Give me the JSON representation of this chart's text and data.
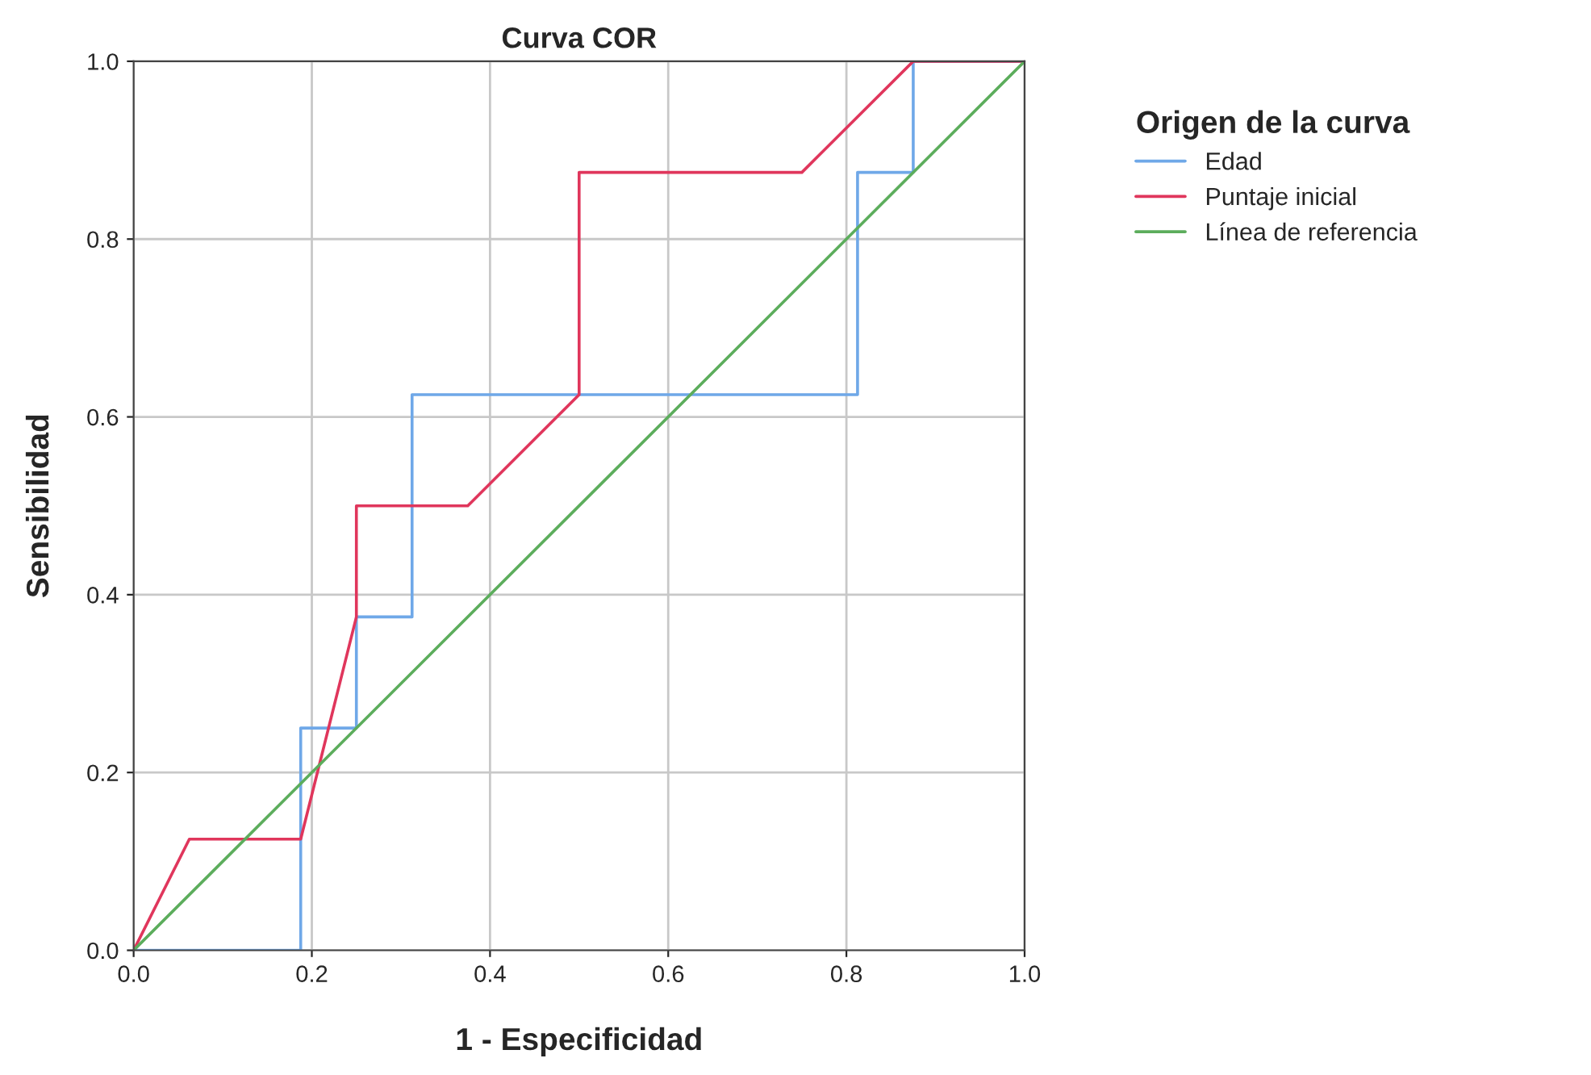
{
  "chart_data": {
    "type": "line",
    "title": "Curva COR",
    "xlabel": "1 - Especificidad",
    "ylabel": "Sensibilidad",
    "legend_title": "Origen de la curva",
    "series": [
      {
        "name": "Edad",
        "color": "#6fa8e8",
        "x": [
          0,
          0.1875,
          0.1875,
          0.25,
          0.25,
          0.3125,
          0.3125,
          0.8125,
          0.8125,
          0.875,
          0.875,
          1
        ],
        "values": [
          0,
          0,
          0.25,
          0.25,
          0.375,
          0.375,
          0.625,
          0.625,
          0.875,
          0.875,
          1,
          1
        ]
      },
      {
        "name": "Puntaje inicial",
        "color": "#e0365c",
        "x": [
          0,
          0.0625,
          0.1875,
          0.25,
          0.25,
          0.375,
          0.5,
          0.5,
          0.75,
          0.875,
          1
        ],
        "values": [
          0,
          0.125,
          0.125,
          0.375,
          0.5,
          0.5,
          0.625,
          0.875,
          0.875,
          1,
          1
        ]
      },
      {
        "name": "Línea de referencia",
        "color": "#5cad5c",
        "x": [
          0,
          1
        ],
        "values": [
          0,
          1
        ]
      }
    ],
    "xlim": [
      0,
      1
    ],
    "ylim": [
      0,
      1
    ],
    "xticks": [
      {
        "value": 0,
        "label": "0.0"
      },
      {
        "value": 0.2,
        "label": "0.2"
      },
      {
        "value": 0.4,
        "label": "0.4"
      },
      {
        "value": 0.6,
        "label": "0.6"
      },
      {
        "value": 0.8,
        "label": "0.8"
      },
      {
        "value": 1,
        "label": "1.0"
      }
    ],
    "yticks": [
      {
        "value": 0,
        "label": "0.0"
      },
      {
        "value": 0.2,
        "label": "0.2"
      },
      {
        "value": 0.4,
        "label": "0.4"
      },
      {
        "value": 0.6,
        "label": "0.6"
      },
      {
        "value": 0.8,
        "label": "0.8"
      },
      {
        "value": 1,
        "label": "1.0"
      }
    ],
    "grid": true,
    "legend": "right"
  }
}
